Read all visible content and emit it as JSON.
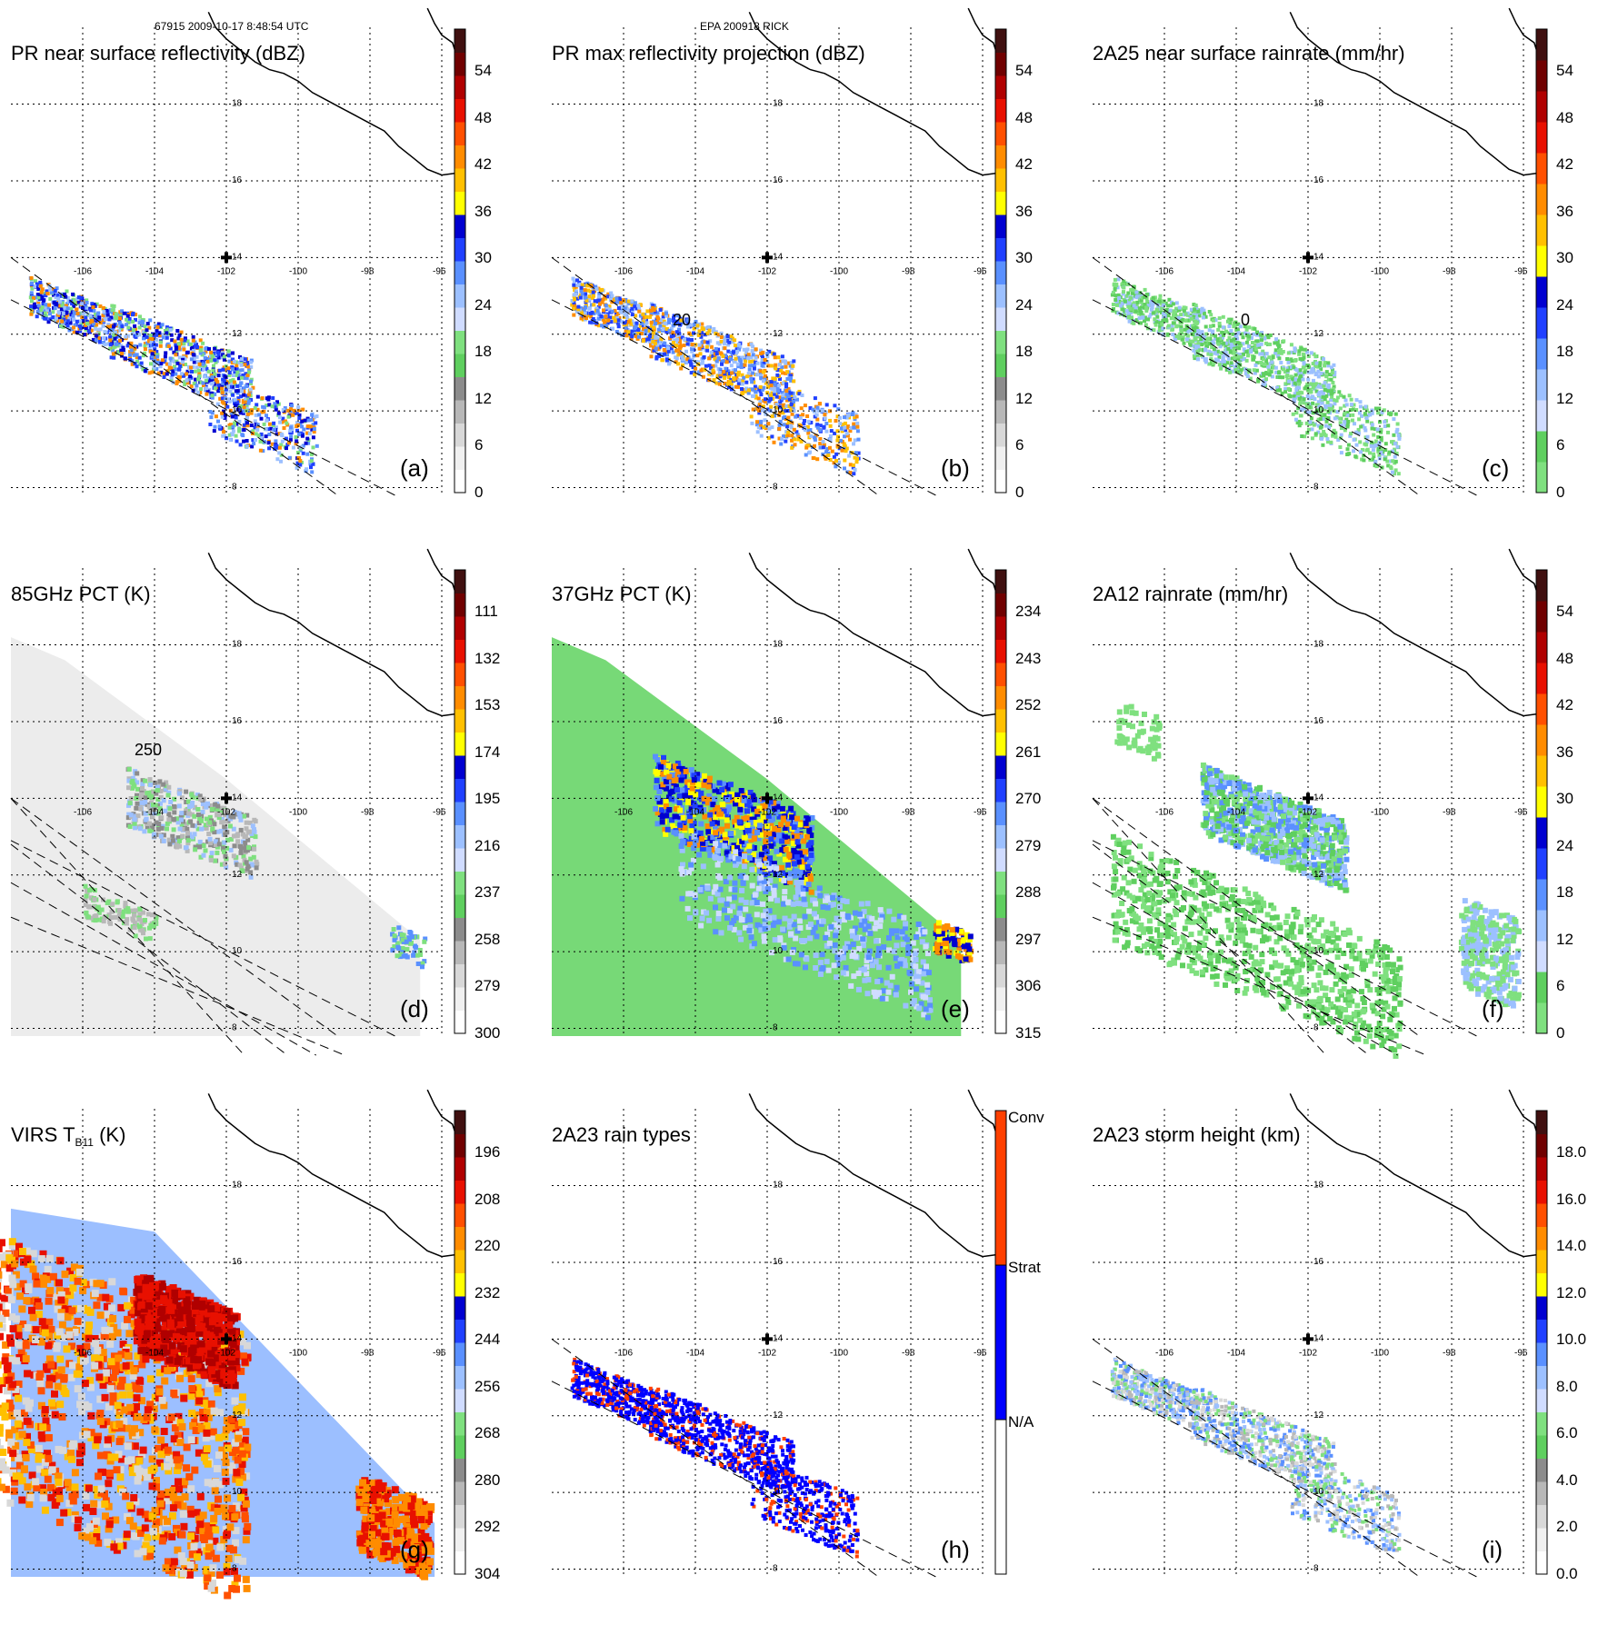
{
  "header": {
    "orbit_time": "67915 2009-10-17 8:48:54 UTC",
    "storm": "EPA 200918 RICK"
  },
  "map": {
    "lat_labels": [
      "18",
      "16",
      "14",
      "12",
      "10",
      "8"
    ],
    "lon_labels": [
      "-106",
      "-104",
      "-102",
      "-100",
      "-98",
      "-96"
    ],
    "center_marker": {
      "lon": -102,
      "lat": 14
    }
  },
  "panels": [
    {
      "id": "a",
      "title": "PR near surface reflectivity (dBZ)",
      "label": "(a)",
      "scale": "dbz",
      "contour": ""
    },
    {
      "id": "b",
      "title": "PR max reflectivity projection (dBZ)",
      "label": "(b)",
      "scale": "dbz",
      "contour": "20"
    },
    {
      "id": "c",
      "title": "2A25 near surface rainrate (mm/hr)",
      "label": "(c)",
      "scale": "rain",
      "contour": "0"
    },
    {
      "id": "d",
      "title": "85GHz PCT (K)",
      "label": "(d)",
      "scale": "pct85",
      "contour": "250"
    },
    {
      "id": "e",
      "title": "37GHz PCT (K)",
      "label": "(e)",
      "scale": "pct37",
      "contour": ""
    },
    {
      "id": "f",
      "title": "2A12 rainrate (mm/hr)",
      "label": "(f)",
      "scale": "rain",
      "contour": ""
    },
    {
      "id": "g",
      "title_main": "VIRS T",
      "title_sub": "B11",
      "title_unit": " (K)",
      "label": "(g)",
      "scale": "virs",
      "contour": ""
    },
    {
      "id": "h",
      "title": "2A23 rain types",
      "label": "(h)",
      "scale": "types",
      "contour": ""
    },
    {
      "id": "i",
      "title": "2A23 storm height (km)",
      "label": "(i)",
      "scale": "height",
      "contour": ""
    }
  ],
  "scales": {
    "dbz": {
      "ticks": [
        "54",
        "48",
        "42",
        "36",
        "30",
        "24",
        "18",
        "12",
        "6",
        "0"
      ]
    },
    "rain": {
      "ticks": [
        "54",
        "48",
        "42",
        "36",
        "30",
        "24",
        "18",
        "12",
        "6",
        "0"
      ]
    },
    "pct85": {
      "ticks": [
        "111",
        "132",
        "153",
        "174",
        "195",
        "216",
        "237",
        "258",
        "279",
        "300"
      ]
    },
    "pct37": {
      "ticks": [
        "234",
        "243",
        "252",
        "261",
        "270",
        "279",
        "288",
        "297",
        "306",
        "315"
      ]
    },
    "virs": {
      "ticks": [
        "196",
        "208",
        "220",
        "232",
        "244",
        "256",
        "268",
        "280",
        "292",
        "304"
      ]
    },
    "height": {
      "ticks": [
        "18.0",
        "16.0",
        "14.0",
        "12.0",
        "10.0",
        "8.0",
        "6.0",
        "4.0",
        "2.0",
        "0.0"
      ]
    },
    "types": {
      "ticks": [
        "Conv",
        "Strat",
        "N/A"
      ]
    }
  },
  "colors": {
    "rain_scale": [
      "#ffffff",
      "#e8e8e8",
      "#c8c8c8",
      "#a0a0a0",
      "#5fcf5f",
      "#7fe07f",
      "#c8d8ff",
      "#8fb8ff",
      "#4080ff",
      "#1838ff",
      "#0000c8",
      "#ffff00",
      "#ffc000",
      "#ff8000",
      "#ff4000",
      "#e00000",
      "#b00000",
      "#601010"
    ],
    "rain_type_conv": "#ff4000",
    "rain_type_strat": "#0000ff",
    "rain_type_na": "#ffffff"
  }
}
